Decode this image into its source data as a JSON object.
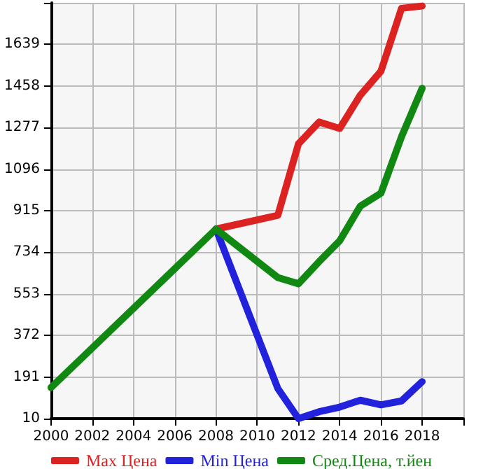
{
  "chart_data": {
    "type": "line",
    "xlim": [
      2000,
      2020
    ],
    "xticks": [
      2000,
      2002,
      2004,
      2006,
      2008,
      2010,
      2012,
      2014,
      2016,
      2018,
      {
        "value": 2020,
        "label": null
      }
    ],
    "ylim": [
      10,
      1820
    ],
    "yticks": [
      10,
      191,
      372,
      553,
      734,
      915,
      1096,
      1277,
      1458,
      1639,
      {
        "value": 1820,
        "label": null
      }
    ],
    "grid": true,
    "legend": "bottom",
    "marker": "none",
    "line_style": "solid",
    "series": [
      {
        "name": "Max Цена",
        "color": "#dd2222",
        "x": [
          2008,
          2011,
          2012,
          2013,
          2014,
          2015,
          2016,
          2017,
          2018
        ],
        "values": [
          835,
          895,
          1206,
          1301,
          1273,
          1418,
          1522,
          1796,
          1806
        ]
      },
      {
        "name": "Min Цена",
        "color": "#2222dd",
        "x": [
          2008,
          2011,
          2012,
          2013,
          2014,
          2015,
          2016,
          2017,
          2018
        ],
        "values": [
          835,
          141,
          10,
          40,
          60,
          90,
          70,
          87,
          171
        ]
      },
      {
        "name": "Сред.Цена, т.йен",
        "color": "#118811",
        "x": [
          2000,
          2008,
          2011,
          2012,
          2013,
          2014,
          2015,
          2016,
          2017,
          2018
        ],
        "values": [
          145,
          835,
          624,
          597,
          693,
          784,
          935,
          991,
          1237,
          1448
        ]
      }
    ]
  }
}
